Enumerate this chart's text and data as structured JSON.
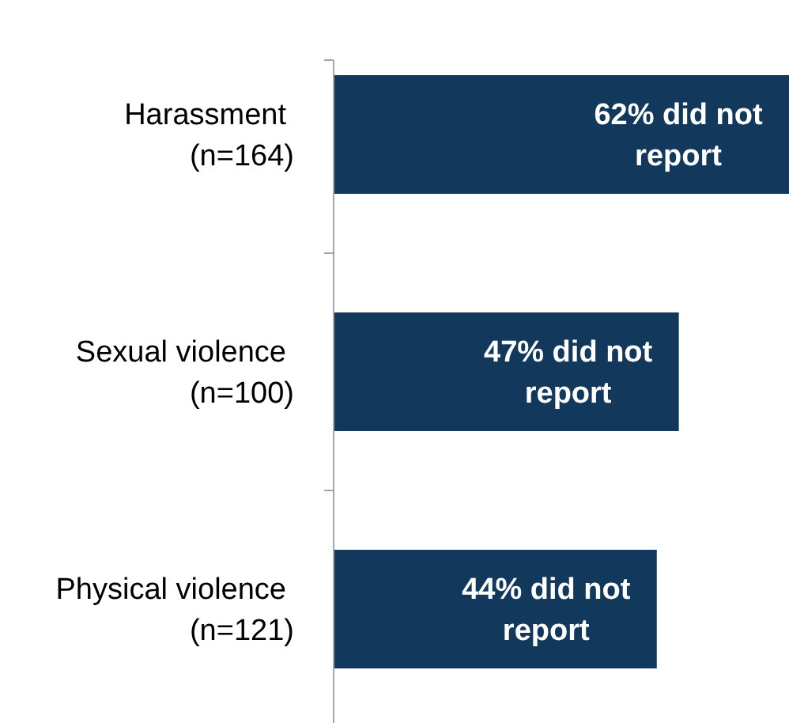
{
  "chart_data": {
    "type": "bar",
    "orientation": "horizontal",
    "categories": [
      "Harassment\n(n=164)",
      "Sexual violence\n(n=100)",
      "Physical violence\n(n=121)"
    ],
    "values": [
      62,
      47,
      44
    ],
    "value_labels": [
      "62% did not\nreport",
      "47% did not\nreport",
      "44% did not\nreport"
    ],
    "color": "#12385b",
    "xlim": [
      0,
      62
    ],
    "tick_labels": "y"
  }
}
